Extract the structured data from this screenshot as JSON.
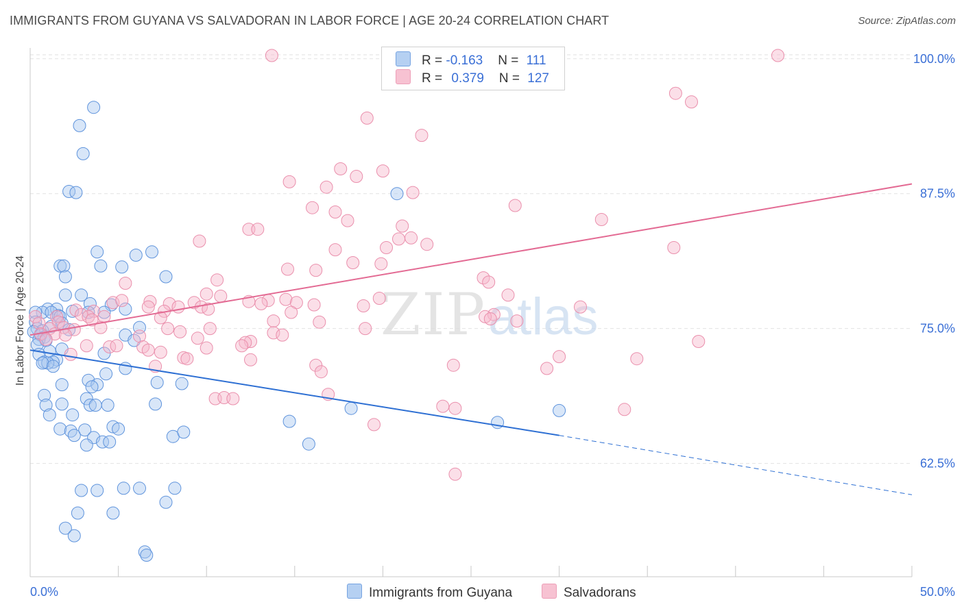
{
  "header": {
    "title": "IMMIGRANTS FROM GUYANA VS SALVADORAN IN LABOR FORCE | AGE 20-24 CORRELATION CHART",
    "source": "Source: ZipAtlas.com"
  },
  "watermark": {
    "zip": "ZIP",
    "atlas": "atlas"
  },
  "legend": {
    "rows": [
      {
        "r_label": "R = ",
        "r_value": "-0.163",
        "n_label": "N = ",
        "n_value": "111",
        "color": "#a9c8f0"
      },
      {
        "r_label": "R = ",
        "r_value": "0.379",
        "n_label": "N = ",
        "n_value": "127",
        "color": "#f6b8cb"
      }
    ]
  },
  "bottom_legend": {
    "items": [
      {
        "label": "Immigrants from Guyana",
        "color": "#a9c8f0"
      },
      {
        "label": "Salvadorans",
        "color": "#f6b8cb"
      }
    ]
  },
  "chart_data": {
    "type": "scatter",
    "title": "IMMIGRANTS FROM GUYANA VS SALVADORAN IN LABOR FORCE | AGE 20-24 CORRELATION CHART",
    "xlabel": "",
    "ylabel": "In Labor Force | Age 20-24",
    "xlim": [
      0,
      50
    ],
    "ylim": [
      52,
      101
    ],
    "x_tick_labels": [
      "0.0%",
      "50.0%"
    ],
    "y_ticks": [
      62.5,
      75.0,
      87.5,
      100.0
    ],
    "y_tick_labels": [
      "62.5%",
      "75.0%",
      "87.5%",
      "100.0%"
    ],
    "grid": true,
    "legend_position": "top-center",
    "colors": {
      "guyana_fill": "#a9c8f0",
      "guyana_stroke": "#5e93dc",
      "guyana_line": "#2d6fd3",
      "salvadoran_fill": "#f6b8cb",
      "salvadoran_stroke": "#ea8fac",
      "salvadoran_line": "#e36a93",
      "tick_label": "#3a6fd6",
      "grid": "#e2e2e2"
    },
    "series": [
      {
        "name": "Immigrants from Guyana",
        "r": -0.163,
        "n": 111,
        "trend": {
          "x0": 0,
          "y0": 73.0,
          "x1": 30,
          "y1": 65.1,
          "dashed_to_x": 50,
          "dashed_to_y": 59.6
        },
        "points": [
          [
            3.6,
            95.5
          ],
          [
            2.8,
            93.8
          ],
          [
            3.0,
            91.2
          ],
          [
            2.2,
            87.7
          ],
          [
            2.6,
            87.6
          ],
          [
            20.8,
            87.5
          ],
          [
            3.8,
            82.1
          ],
          [
            6.0,
            81.8
          ],
          [
            6.9,
            82.1
          ],
          [
            1.7,
            80.8
          ],
          [
            1.9,
            80.8
          ],
          [
            4.0,
            80.8
          ],
          [
            5.2,
            80.7
          ],
          [
            7.7,
            79.8
          ],
          [
            2.0,
            79.8
          ],
          [
            2.0,
            78.1
          ],
          [
            2.9,
            78.1
          ],
          [
            3.4,
            77.3
          ],
          [
            4.6,
            77.2
          ],
          [
            1.0,
            76.8
          ],
          [
            1.5,
            76.8
          ],
          [
            0.7,
            76.5
          ],
          [
            1.2,
            76.5
          ],
          [
            2.4,
            76.6
          ],
          [
            4.2,
            76.5
          ],
          [
            5.4,
            76.8
          ],
          [
            0.3,
            76.5
          ],
          [
            3.3,
            76.5
          ],
          [
            1.6,
            76.2
          ],
          [
            1.7,
            76.1
          ],
          [
            1.2,
            75.2
          ],
          [
            0.3,
            75.6
          ],
          [
            1.8,
            75.5
          ],
          [
            6.2,
            75.1
          ],
          [
            0.4,
            75.0
          ],
          [
            0.7,
            74.8
          ],
          [
            2.2,
            74.9
          ],
          [
            0.2,
            74.7
          ],
          [
            0.6,
            74.4
          ],
          [
            5.4,
            74.4
          ],
          [
            0.8,
            74.2
          ],
          [
            0.5,
            74.0
          ],
          [
            0.9,
            73.9
          ],
          [
            5.9,
            73.9
          ],
          [
            0.4,
            73.5
          ],
          [
            1.8,
            73.1
          ],
          [
            1.1,
            72.9
          ],
          [
            0.5,
            72.6
          ],
          [
            4.2,
            72.7
          ],
          [
            1.5,
            72.1
          ],
          [
            0.8,
            71.9
          ],
          [
            1.3,
            71.9
          ],
          [
            1.0,
            71.8
          ],
          [
            0.7,
            71.8
          ],
          [
            1.3,
            71.5
          ],
          [
            5.4,
            71.3
          ],
          [
            4.3,
            70.8
          ],
          [
            3.3,
            70.2
          ],
          [
            1.8,
            69.8
          ],
          [
            3.8,
            69.8
          ],
          [
            3.5,
            69.6
          ],
          [
            7.2,
            70.0
          ],
          [
            8.6,
            69.9
          ],
          [
            0.8,
            68.8
          ],
          [
            3.2,
            68.5
          ],
          [
            0.9,
            67.9
          ],
          [
            1.8,
            68.0
          ],
          [
            3.4,
            67.9
          ],
          [
            3.7,
            67.9
          ],
          [
            4.4,
            67.9
          ],
          [
            7.1,
            68.0
          ],
          [
            18.2,
            67.6
          ],
          [
            30.0,
            67.4
          ],
          [
            1.1,
            67.0
          ],
          [
            2.4,
            67.0
          ],
          [
            14.7,
            66.4
          ],
          [
            26.5,
            66.3
          ],
          [
            1.7,
            65.7
          ],
          [
            4.7,
            65.9
          ],
          [
            5.0,
            65.7
          ],
          [
            2.3,
            65.5
          ],
          [
            3.1,
            65.6
          ],
          [
            2.5,
            65.1
          ],
          [
            3.6,
            64.9
          ],
          [
            8.1,
            65.0
          ],
          [
            8.7,
            65.4
          ],
          [
            4.1,
            64.5
          ],
          [
            4.5,
            64.5
          ],
          [
            3.2,
            64.2
          ],
          [
            15.8,
            64.3
          ],
          [
            2.9,
            60.0
          ],
          [
            3.8,
            60.0
          ],
          [
            5.3,
            60.2
          ],
          [
            6.2,
            60.2
          ],
          [
            8.2,
            60.2
          ],
          [
            7.7,
            58.9
          ],
          [
            2.7,
            57.9
          ],
          [
            4.7,
            57.9
          ],
          [
            2.0,
            56.5
          ],
          [
            2.5,
            55.8
          ],
          [
            6.5,
            54.3
          ],
          [
            6.6,
            54.0
          ]
        ]
      },
      {
        "name": "Salvadorans",
        "r": 0.379,
        "n": 127,
        "trend": {
          "x0": 0,
          "y0": 74.4,
          "x1": 50,
          "y1": 88.4
        },
        "points": [
          [
            13.7,
            100.3
          ],
          [
            42.4,
            100.3
          ],
          [
            19.1,
            94.5
          ],
          [
            36.6,
            96.8
          ],
          [
            37.5,
            96.0
          ],
          [
            22.2,
            92.9
          ],
          [
            17.6,
            89.8
          ],
          [
            20.0,
            89.6
          ],
          [
            14.7,
            88.6
          ],
          [
            16.8,
            88.1
          ],
          [
            18.5,
            89.1
          ],
          [
            21.7,
            87.6
          ],
          [
            27.5,
            86.4
          ],
          [
            16.0,
            86.2
          ],
          [
            17.3,
            85.8
          ],
          [
            18.0,
            85.0
          ],
          [
            32.4,
            85.1
          ],
          [
            12.4,
            84.2
          ],
          [
            12.9,
            84.2
          ],
          [
            21.1,
            84.5
          ],
          [
            21.6,
            83.4
          ],
          [
            20.9,
            83.3
          ],
          [
            22.5,
            82.8
          ],
          [
            20.2,
            82.5
          ],
          [
            9.6,
            83.1
          ],
          [
            17.3,
            82.3
          ],
          [
            36.5,
            82.5
          ],
          [
            18.3,
            81.1
          ],
          [
            19.9,
            81.0
          ],
          [
            16.2,
            80.4
          ],
          [
            14.6,
            80.5
          ],
          [
            10.6,
            79.5
          ],
          [
            25.7,
            79.7
          ],
          [
            26.0,
            79.3
          ],
          [
            5.4,
            79.2
          ],
          [
            10.0,
            78.2
          ],
          [
            10.8,
            78.0
          ],
          [
            13.5,
            77.6
          ],
          [
            14.5,
            77.7
          ],
          [
            19.8,
            77.8
          ],
          [
            27.1,
            78.1
          ],
          [
            4.7,
            77.4
          ],
          [
            5.2,
            77.6
          ],
          [
            6.8,
            77.5
          ],
          [
            7.9,
            77.3
          ],
          [
            9.3,
            77.4
          ],
          [
            12.4,
            77.5
          ],
          [
            13.1,
            77.3
          ],
          [
            15.1,
            77.4
          ],
          [
            16.1,
            77.2
          ],
          [
            18.9,
            77.1
          ],
          [
            9.7,
            77.0
          ],
          [
            8.4,
            77.0
          ],
          [
            6.7,
            77.0
          ],
          [
            31.2,
            77.0
          ],
          [
            2.6,
            76.7
          ],
          [
            3.6,
            76.6
          ],
          [
            7.6,
            76.6
          ],
          [
            10.1,
            76.8
          ],
          [
            14.8,
            76.5
          ],
          [
            26.3,
            76.3
          ],
          [
            0.3,
            76.1
          ],
          [
            1.5,
            76.1
          ],
          [
            2.9,
            76.3
          ],
          [
            3.3,
            76.1
          ],
          [
            4.2,
            76.1
          ],
          [
            7.4,
            76.0
          ],
          [
            25.8,
            76.1
          ],
          [
            26.1,
            75.9
          ],
          [
            0.5,
            75.5
          ],
          [
            1.6,
            75.6
          ],
          [
            3.5,
            75.8
          ],
          [
            13.8,
            75.7
          ],
          [
            16.4,
            75.6
          ],
          [
            27.6,
            75.7
          ],
          [
            1.1,
            75.0
          ],
          [
            1.9,
            75.1
          ],
          [
            2.5,
            74.9
          ],
          [
            4.0,
            75.1
          ],
          [
            7.8,
            75.0
          ],
          [
            10.2,
            75.0
          ],
          [
            19.0,
            75.0
          ],
          [
            0.6,
            74.5
          ],
          [
            1.4,
            74.5
          ],
          [
            2.0,
            74.4
          ],
          [
            6.2,
            74.3
          ],
          [
            8.5,
            74.7
          ],
          [
            13.8,
            74.6
          ],
          [
            0.9,
            74.0
          ],
          [
            9.5,
            74.1
          ],
          [
            12.5,
            73.8
          ],
          [
            12.2,
            73.7
          ],
          [
            14.3,
            74.4
          ],
          [
            37.9,
            73.8
          ],
          [
            3.2,
            73.4
          ],
          [
            4.5,
            73.3
          ],
          [
            4.9,
            73.4
          ],
          [
            6.4,
            73.3
          ],
          [
            10.0,
            73.2
          ],
          [
            12.0,
            73.4
          ],
          [
            6.7,
            73.0
          ],
          [
            7.4,
            72.8
          ],
          [
            2.3,
            72.6
          ],
          [
            8.7,
            72.3
          ],
          [
            8.9,
            72.2
          ],
          [
            12.5,
            72.1
          ],
          [
            30.0,
            72.4
          ],
          [
            34.4,
            72.2
          ],
          [
            16.2,
            71.6
          ],
          [
            24.0,
            71.6
          ],
          [
            16.5,
            71.0
          ],
          [
            29.3,
            71.3
          ],
          [
            7.1,
            71.5
          ],
          [
            10.5,
            68.5
          ],
          [
            11.0,
            68.6
          ],
          [
            11.5,
            68.5
          ],
          [
            16.9,
            68.9
          ],
          [
            23.4,
            67.8
          ],
          [
            24.1,
            67.6
          ],
          [
            33.7,
            67.5
          ],
          [
            19.5,
            66.1
          ],
          [
            24.1,
            61.5
          ]
        ]
      }
    ]
  }
}
